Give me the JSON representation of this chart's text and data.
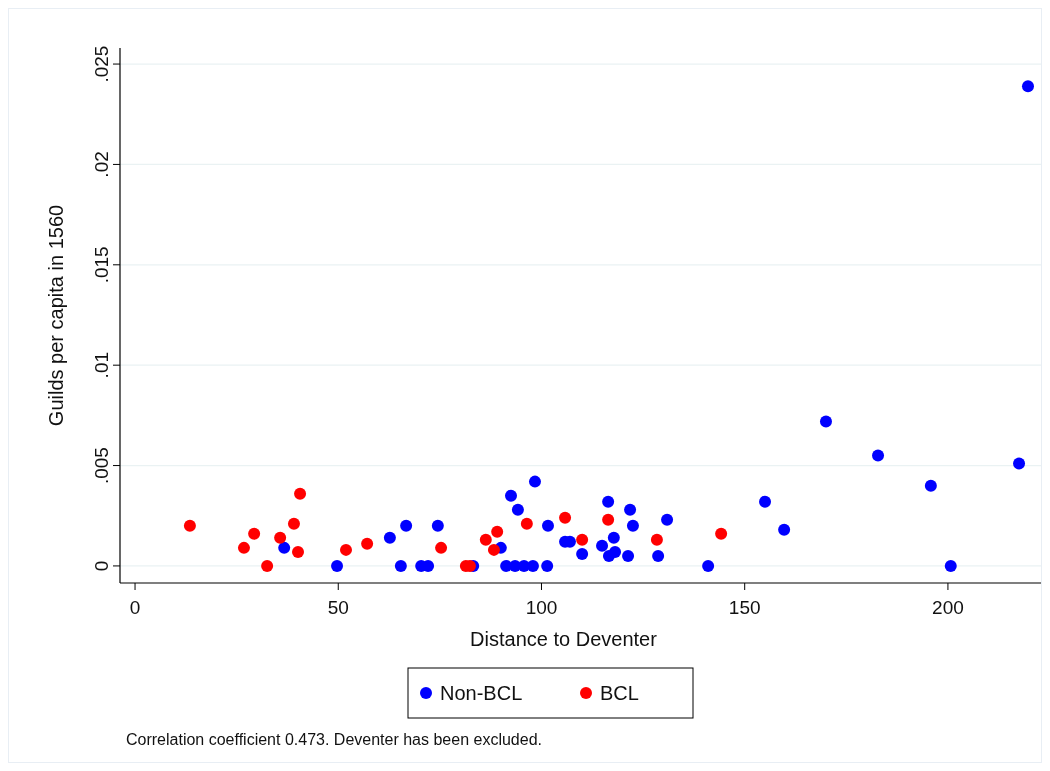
{
  "chart_data": {
    "type": "scatter",
    "xlabel": "Distance to Deventer",
    "ylabel": "Guilds per capita in 1560",
    "xlim": [
      -3.7,
      222.9
    ],
    "xticks": [
      0,
      50,
      100,
      150,
      200
    ],
    "ylim": [
      -0.00085,
      0.0258
    ],
    "yticks": [
      0,
      {
        "value": 0.005,
        "label": ".005"
      },
      {
        "value": 0.01,
        "label": ".01"
      },
      {
        "value": 0.015,
        "label": ".015"
      },
      {
        "value": 0.02,
        "label": ".02"
      },
      {
        "value": 0.025,
        "label": ".025"
      }
    ],
    "grid": "y",
    "legend": "bottom",
    "marker": "circle",
    "annotations": [
      "Correlation coefficient 0.473. Deventer has been excluded."
    ],
    "series": [
      {
        "name": "Non-BCL",
        "color": "#0000ff",
        "x": [
          36.7,
          49.7,
          62.7,
          66.7,
          65.4,
          70.4,
          72.1,
          74.5,
          83.2,
          90,
          92.5,
          94.2,
          98.4,
          101.6,
          91.3,
          93.5,
          95.7,
          97.9,
          101.4,
          105.8,
          107,
          110,
          114.9,
          116.4,
          116.6,
          118.1,
          117.8,
          121.3,
          121.8,
          122.5,
          128.7,
          130.9,
          141,
          155,
          159.7,
          170,
          182.8,
          195.8,
          200.7,
          217.5,
          219.7
        ],
        "values": [
          0.0009,
          0,
          0.0014,
          0.002,
          0,
          0,
          0,
          0.002,
          0,
          0.0009,
          0.0035,
          0.0028,
          0.0042,
          0.002,
          0,
          0,
          0,
          0,
          0,
          0.0012,
          0.0012,
          0.0006,
          0.001,
          0.0032,
          0.0005,
          0.0007,
          0.0014,
          0.0005,
          0.0028,
          0.002,
          0.0005,
          0.0023,
          0,
          0.0032,
          0.0018,
          0.0072,
          0.0055,
          0.004,
          0,
          0.0051,
          0.0239
        ]
      },
      {
        "name": "BCL",
        "color": "#ff0000",
        "x": [
          13.5,
          26.8,
          29.3,
          32.5,
          35.7,
          39.1,
          40.1,
          40.6,
          51.9,
          57.1,
          75.3,
          81.4,
          82.4,
          86.3,
          89.1,
          88.3,
          96.4,
          105.8,
          110,
          116.4,
          128.4,
          144.2
        ],
        "values": [
          0.002,
          0.0009,
          0.0016,
          0,
          0.0014,
          0.0021,
          0.0007,
          0.0036,
          0.0008,
          0.0011,
          0.0009,
          0,
          0,
          0.0013,
          0.0017,
          0.0008,
          0.0021,
          0.0024,
          0.0013,
          0.0023,
          0.0013,
          0.0016
        ]
      }
    ]
  }
}
